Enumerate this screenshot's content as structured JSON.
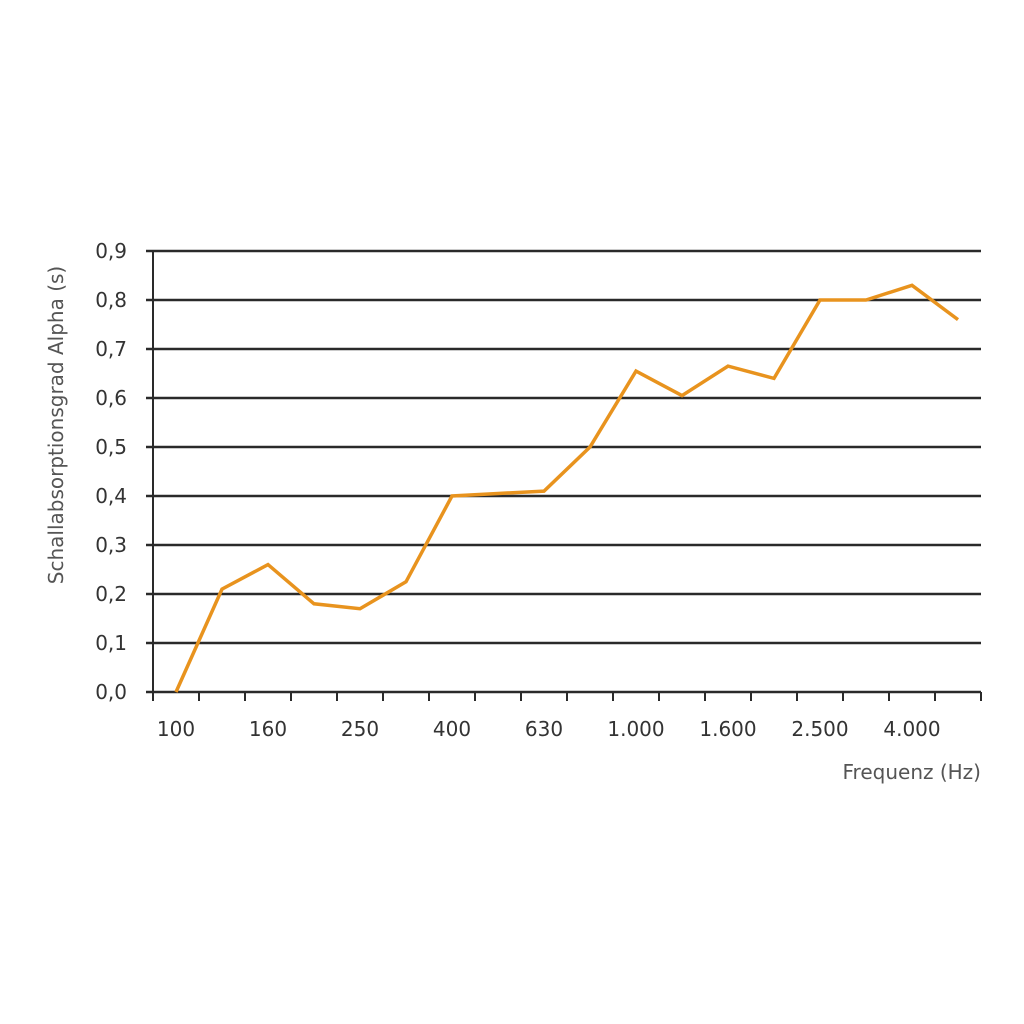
{
  "chart_data": {
    "type": "line",
    "title": "",
    "xlabel": "Frequenz (Hz)",
    "ylabel": "Schallabsorptionsgrad Alpha (s)",
    "x": [
      100,
      125,
      160,
      200,
      250,
      315,
      400,
      500,
      630,
      800,
      1000,
      1250,
      1600,
      2000,
      2500,
      3150,
      4000,
      5000
    ],
    "x_tick_labels": [
      "100",
      "160",
      "250",
      "400",
      "630",
      "1.000",
      "1.600",
      "2.500",
      "4.000"
    ],
    "y_tick_labels": [
      "0,0",
      "0,1",
      "0,2",
      "0,3",
      "0,4",
      "0,5",
      "0,6",
      "0,7",
      "0,8",
      "0,9"
    ],
    "ylim": [
      0,
      0.9
    ],
    "y_step": 0.1,
    "grid": "horizontal",
    "series": [
      {
        "values": [
          0.0,
          0.21,
          0.26,
          0.18,
          0.17,
          0.225,
          0.4,
          0.405,
          0.41,
          0.5,
          0.655,
          0.605,
          0.665,
          0.64,
          0.8,
          0.8,
          0.83,
          0.76
        ],
        "color": "#e8931e"
      }
    ],
    "colors": {
      "line": "#e8931e",
      "grid": "#2a2a2a",
      "text": "#333333"
    }
  }
}
